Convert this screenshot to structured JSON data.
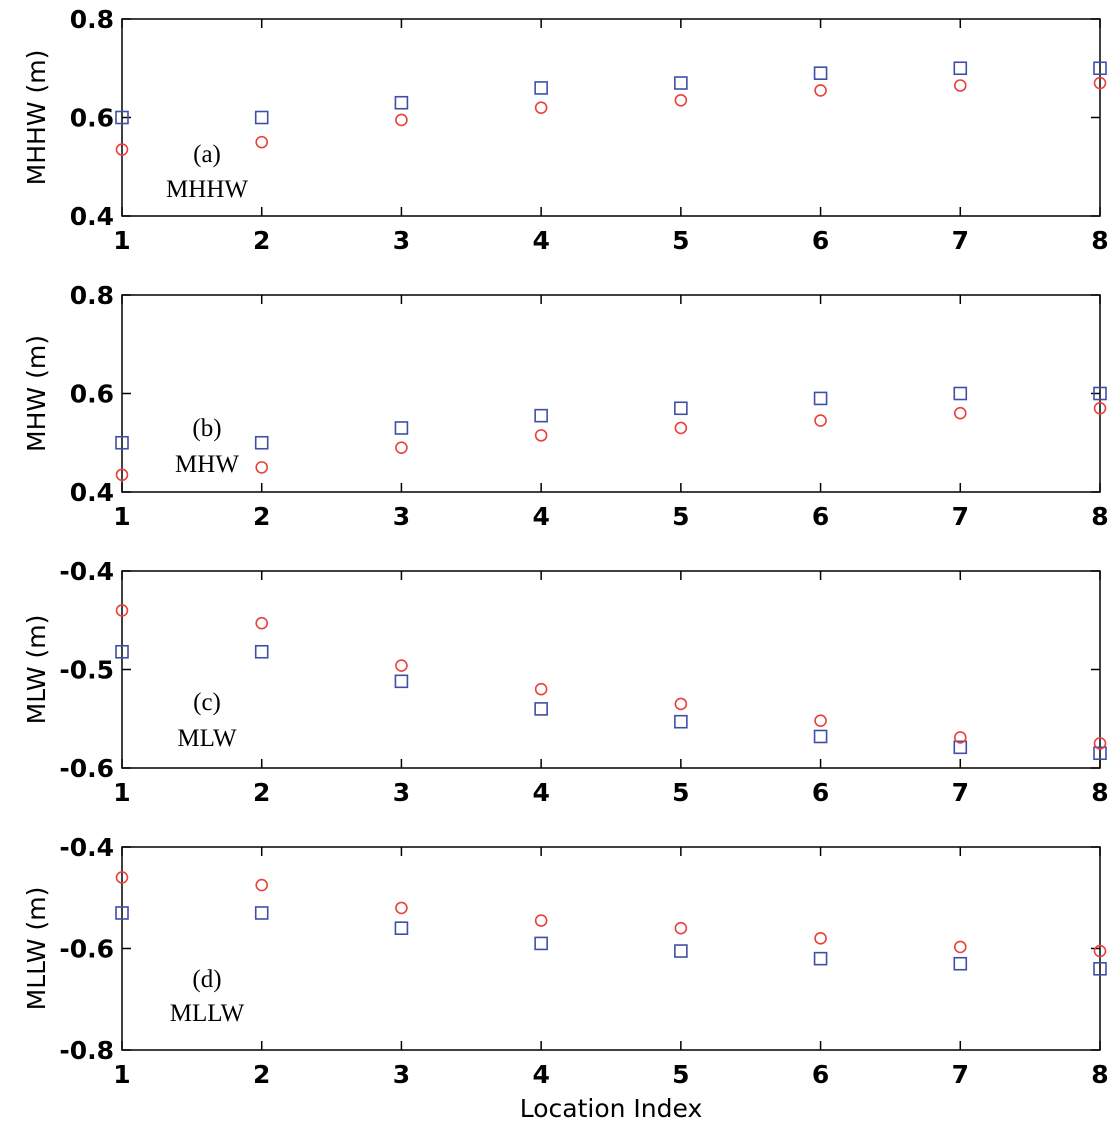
{
  "chart_data": [
    {
      "type": "scatter",
      "x": [
        1,
        2,
        3,
        4,
        5,
        6,
        7,
        8
      ],
      "xticks": [
        "1",
        "2",
        "3",
        "4",
        "5",
        "6",
        "7",
        "8"
      ],
      "xlim": [
        1,
        8
      ],
      "ylabel": "MHHW (m)",
      "ylim": [
        0.4,
        0.8
      ],
      "yticks": [
        "0.4",
        "0.6",
        "0.8"
      ],
      "annotation": [
        "(a)",
        "MHHW"
      ],
      "series": [
        {
          "marker": "square",
          "color": "#3f4fa8",
          "values": [
            0.6,
            0.6,
            0.63,
            0.66,
            0.67,
            0.69,
            0.7,
            0.7
          ]
        },
        {
          "marker": "circle",
          "color": "#e8413c",
          "values": [
            0.535,
            0.55,
            0.595,
            0.62,
            0.635,
            0.655,
            0.665,
            0.67
          ]
        }
      ]
    },
    {
      "type": "scatter",
      "x": [
        1,
        2,
        3,
        4,
        5,
        6,
        7,
        8
      ],
      "xticks": [
        "1",
        "2",
        "3",
        "4",
        "5",
        "6",
        "7",
        "8"
      ],
      "xlim": [
        1,
        8
      ],
      "ylabel": "MHW (m)",
      "ylim": [
        0.4,
        0.8
      ],
      "yticks": [
        "0.4",
        "0.6",
        "0.8"
      ],
      "annotation": [
        "(b)",
        "MHW"
      ],
      "series": [
        {
          "marker": "square",
          "color": "#3f4fa8",
          "values": [
            0.5,
            0.5,
            0.53,
            0.555,
            0.57,
            0.59,
            0.6,
            0.6
          ]
        },
        {
          "marker": "circle",
          "color": "#e8413c",
          "values": [
            0.435,
            0.45,
            0.49,
            0.515,
            0.53,
            0.545,
            0.56,
            0.57
          ]
        }
      ]
    },
    {
      "type": "scatter",
      "x": [
        1,
        2,
        3,
        4,
        5,
        6,
        7,
        8
      ],
      "xticks": [
        "1",
        "2",
        "3",
        "4",
        "5",
        "6",
        "7",
        "8"
      ],
      "xlim": [
        1,
        8
      ],
      "ylabel": "MLW (m)",
      "ylim": [
        -0.6,
        -0.4
      ],
      "yticks": [
        "-0.6",
        "-0.5",
        "-0.4"
      ],
      "annotation": [
        "(c)",
        "MLW"
      ],
      "series": [
        {
          "marker": "square",
          "color": "#3f4fa8",
          "values": [
            -0.482,
            -0.482,
            -0.512,
            -0.54,
            -0.553,
            -0.568,
            -0.579,
            -0.585
          ]
        },
        {
          "marker": "circle",
          "color": "#e8413c",
          "values": [
            -0.44,
            -0.453,
            -0.496,
            -0.52,
            -0.535,
            -0.552,
            -0.569,
            -0.575
          ]
        }
      ]
    },
    {
      "type": "scatter",
      "x": [
        1,
        2,
        3,
        4,
        5,
        6,
        7,
        8
      ],
      "xticks": [
        "1",
        "2",
        "3",
        "4",
        "5",
        "6",
        "7",
        "8"
      ],
      "xlim": [
        1,
        8
      ],
      "xlabel": "Location Index",
      "ylabel": "MLLW (m)",
      "ylim": [
        -0.8,
        -0.4
      ],
      "yticks": [
        "-0.8",
        "-0.6",
        "-0.4"
      ],
      "annotation": [
        "(d)",
        "MLLW"
      ],
      "series": [
        {
          "marker": "square",
          "color": "#3f4fa8",
          "values": [
            -0.53,
            -0.53,
            -0.56,
            -0.59,
            -0.605,
            -0.62,
            -0.63,
            -0.64
          ]
        },
        {
          "marker": "circle",
          "color": "#e8413c",
          "values": [
            -0.46,
            -0.475,
            -0.52,
            -0.545,
            -0.56,
            -0.58,
            -0.597,
            -0.605
          ]
        }
      ]
    }
  ]
}
